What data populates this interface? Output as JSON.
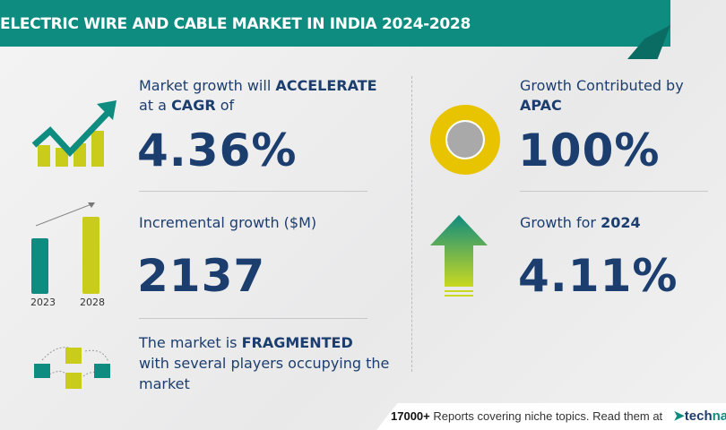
{
  "header": {
    "title": "ELECTRIC WIRE AND CABLE MARKET IN INDIA 2024-2028"
  },
  "cagr": {
    "prefix": "Market growth will",
    "emphasis": "ACCELERATE",
    "line2_prefix": "at a",
    "line2_emphasis": "CAGR",
    "line2_suffix": "of",
    "value": "4.36%"
  },
  "incremental": {
    "label": "Incremental growth ($M)",
    "value": "2137",
    "years": [
      "2023",
      "2028"
    ]
  },
  "fragmented": {
    "prefix": "The market is",
    "emphasis": "FRAGMENTED",
    "line2": "with several players occupying the",
    "line3": "market"
  },
  "region": {
    "label": "Growth Contributed by",
    "region": "APAC",
    "value": "100%"
  },
  "yoy": {
    "label": "Growth for",
    "year": "2024",
    "value": "4.11%"
  },
  "footer": {
    "count": "17000+",
    "text": "Reports covering niche topics. Read them at",
    "logo_prefix": "tech",
    "logo_suffix": "nav"
  },
  "colors": {
    "teal": "#0f8c80",
    "navy": "#1c3e6e",
    "yellow": "#c9cc1a"
  }
}
